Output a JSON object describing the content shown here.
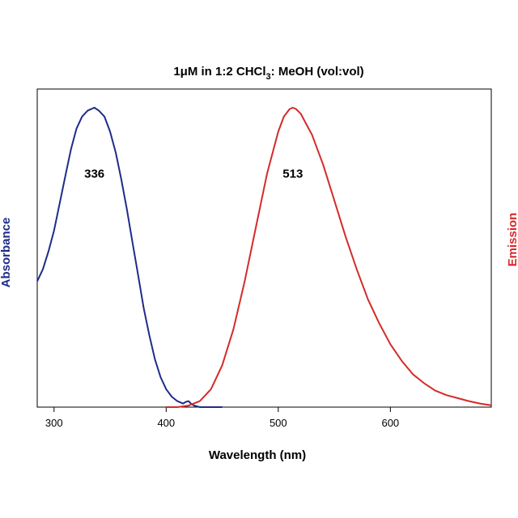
{
  "chart_data": {
    "type": "line",
    "title_main": "1μM in 1:2 CHCl",
    "title_sub": "3",
    "title_rest": ": MeOH (vol:vol)",
    "xlabel": "Wavelength (nm)",
    "ylabel_left": "Absorbance",
    "ylabel_right": "Emission",
    "xlim": [
      285,
      690
    ],
    "ylim": [
      0,
      1
    ],
    "x_ticks": [
      300,
      400,
      500,
      600
    ],
    "y_ticks_shown": false,
    "grid": false,
    "legend": "none",
    "annotations": [
      {
        "text": "336",
        "x": 336,
        "y": 0.78
      },
      {
        "text": "513",
        "x": 513,
        "y": 0.78
      }
    ],
    "series": [
      {
        "axis": "left",
        "color": "#1f2b8a",
        "x": [
          285,
          290,
          295,
          300,
          305,
          310,
          315,
          320,
          325,
          330,
          336,
          340,
          345,
          350,
          355,
          360,
          365,
          370,
          375,
          380,
          385,
          390,
          395,
          400,
          405,
          410,
          415,
          418,
          420,
          422,
          425,
          430,
          440,
          450
        ],
        "values": [
          0.42,
          0.46,
          0.52,
          0.59,
          0.68,
          0.77,
          0.86,
          0.93,
          0.97,
          0.99,
          1.0,
          0.99,
          0.97,
          0.92,
          0.85,
          0.76,
          0.66,
          0.55,
          0.44,
          0.33,
          0.24,
          0.16,
          0.1,
          0.06,
          0.035,
          0.02,
          0.012,
          0.018,
          0.02,
          0.012,
          0.005,
          0.0,
          0.0,
          0.0
        ]
      },
      {
        "axis": "right",
        "color": "#d42a2a",
        "x": [
          400,
          410,
          420,
          430,
          440,
          450,
          460,
          470,
          480,
          490,
          500,
          505,
          510,
          513,
          516,
          520,
          530,
          540,
          550,
          560,
          570,
          580,
          590,
          600,
          610,
          620,
          630,
          640,
          650,
          660,
          670,
          680,
          690
        ],
        "values": [
          0.0,
          0.0,
          0.005,
          0.02,
          0.06,
          0.14,
          0.26,
          0.42,
          0.6,
          0.78,
          0.92,
          0.97,
          0.995,
          1.0,
          0.995,
          0.98,
          0.91,
          0.81,
          0.69,
          0.57,
          0.46,
          0.36,
          0.28,
          0.21,
          0.155,
          0.11,
          0.08,
          0.055,
          0.04,
          0.03,
          0.02,
          0.012,
          0.006
        ]
      }
    ]
  }
}
